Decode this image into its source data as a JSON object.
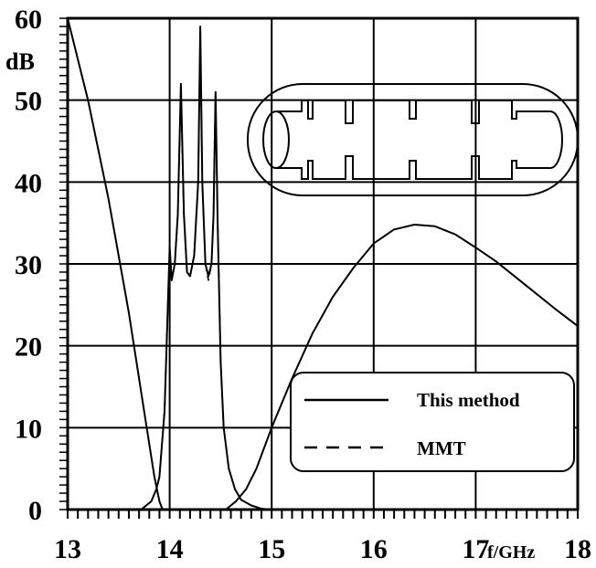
{
  "chart_data": {
    "type": "line",
    "title": "",
    "xlabel": "f/GHz",
    "ylabel": "dB",
    "xlim": [
      13,
      18
    ],
    "ylim": [
      0,
      60
    ],
    "x_ticks": [
      "13",
      "14",
      "15",
      "16",
      "17",
      "18"
    ],
    "y_ticks": [
      "0",
      "10",
      "20",
      "30",
      "40",
      "50",
      "60"
    ],
    "grid": true,
    "legend_position": "bottom-right",
    "inset": "cross-section of a filter with irises inside a rounded enclosure",
    "series": [
      {
        "name": "This method",
        "style": "solid",
        "curves": [
          {
            "x": [
              13.0,
              13.2,
              13.4,
              13.6,
              13.75,
              13.85,
              13.9,
              13.93
            ],
            "y": [
              60,
              50,
              38,
              24,
              12,
              4,
              1,
              0
            ]
          },
          {
            "x": [
              13.72,
              13.82,
              13.87,
              13.9,
              13.95,
              14.0,
              14.02,
              14.05,
              14.08,
              14.11,
              14.14,
              14.17,
              14.2,
              14.24,
              14.28,
              14.3,
              14.32,
              14.35,
              14.38,
              14.41,
              14.43,
              14.45,
              14.47,
              14.5,
              14.53,
              14.58,
              14.64,
              14.7,
              14.8,
              14.9,
              15.0
            ],
            "y": [
              0,
              1,
              2.5,
              4,
              12,
              32,
              28,
              30,
              36,
              52,
              36,
              29,
              28.5,
              31,
              40,
              59,
              40,
              30,
              28.5,
              30,
              36,
              51,
              35,
              18,
              10,
              5,
              2.5,
              1.2,
              0.5,
              0.1,
              0
            ]
          },
          {
            "x": [
              14.55,
              14.65,
              14.75,
              14.85,
              15.0,
              15.2,
              15.4,
              15.6,
              15.8,
              16.0,
              16.2,
              16.4,
              16.6,
              16.8,
              17.0,
              17.2,
              17.4,
              17.6,
              17.8,
              18.0
            ],
            "y": [
              0,
              1,
              2.5,
              5,
              10,
              16,
              21.5,
              26,
              29.5,
              32.5,
              34.2,
              34.8,
              34.6,
              33.6,
              32,
              30.3,
              28.3,
              26.3,
              24.3,
              22.4
            ]
          }
        ]
      },
      {
        "name": "MMT",
        "style": "dashed",
        "curves": [
          {
            "x": [
              13.0,
              13.2,
              13.4,
              13.6,
              13.75,
              13.85,
              13.9,
              13.93
            ],
            "y": [
              60,
              50,
              38,
              24,
              12,
              4,
              1,
              0
            ]
          },
          {
            "x": [
              13.72,
              13.82,
              13.87,
              13.9,
              13.95,
              14.0,
              14.02,
              14.05,
              14.08,
              14.11,
              14.14,
              14.17,
              14.2,
              14.24,
              14.28,
              14.3,
              14.32,
              14.35,
              14.38,
              14.41,
              14.43,
              14.45,
              14.47,
              14.5,
              14.53,
              14.58,
              14.64,
              14.7,
              14.8,
              14.9,
              15.0
            ],
            "y": [
              0,
              1,
              2.5,
              4,
              12,
              32,
              28.5,
              30,
              36,
              51,
              36,
              29,
              28.5,
              31,
              40,
              58,
              40,
              30,
              28,
              30,
              36,
              51,
              35,
              18,
              10,
              5,
              2.5,
              1.2,
              0.5,
              0.1,
              0
            ]
          },
          {
            "x": [
              14.55,
              14.65,
              14.75,
              14.85,
              15.0,
              15.2,
              15.4,
              15.6,
              15.8,
              16.0,
              16.2,
              16.4,
              16.6,
              16.8,
              17.0,
              17.2,
              17.4,
              17.6,
              17.8,
              18.0
            ],
            "y": [
              0,
              1,
              2.5,
              5,
              10,
              16,
              21.5,
              26,
              29.5,
              32.5,
              34.2,
              34.8,
              34.6,
              33.6,
              32,
              30.3,
              28.3,
              26.3,
              24.3,
              22.4
            ]
          }
        ]
      }
    ]
  }
}
